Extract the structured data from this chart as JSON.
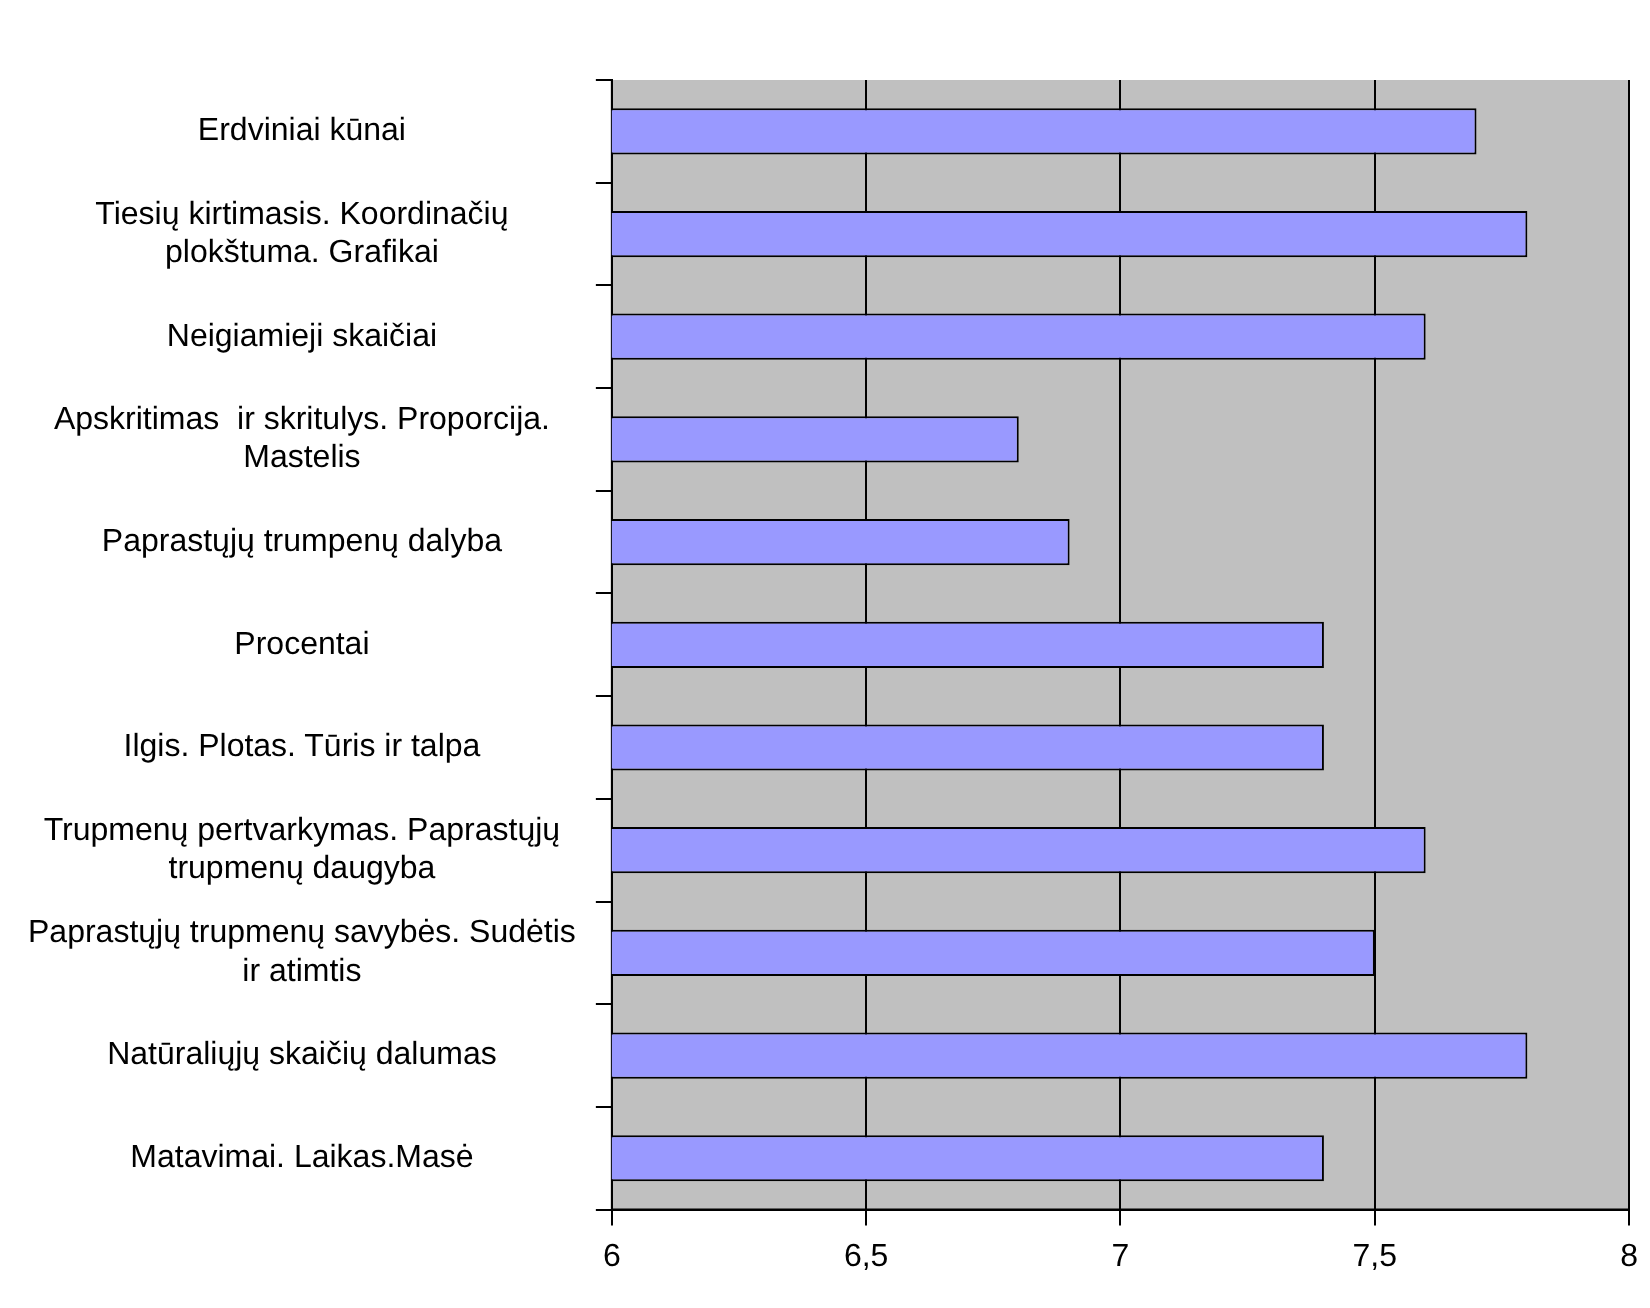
{
  "chart_data": {
    "type": "bar",
    "orientation": "horizontal",
    "categories": [
      "Erdviniai kūnai",
      "Tiesių kirtimasis. Koordinačių\nplokštuma. Grafikai",
      "Neigiamieji skaičiai",
      "Apskritimas  ir skritulys. Proporcija.\nMastelis",
      "Paprastųjų trumpenų dalyba",
      "Procentai",
      "Ilgis. Plotas. Tūris ir talpa",
      "Trupmenų pertvarkymas. Paprastųjų\ntrupmenų daugyba",
      "Paprastųjų trupmenų savybės. Sudėtis\nir atimtis",
      "Natūraliųjų skaičių dalumas",
      "Matavimai. Laikas.Masė"
    ],
    "values": [
      7.7,
      7.8,
      7.6,
      6.8,
      6.9,
      7.4,
      7.4,
      7.6,
      7.5,
      7.8,
      7.4
    ],
    "color": "#9999ff",
    "xlim": [
      6,
      8
    ],
    "xticks": [
      6,
      {
        "value": 6.5,
        "label": "6,5"
      },
      7,
      {
        "value": 7.5,
        "label": "7,5"
      },
      8
    ],
    "grid": "x",
    "legend": false
  }
}
